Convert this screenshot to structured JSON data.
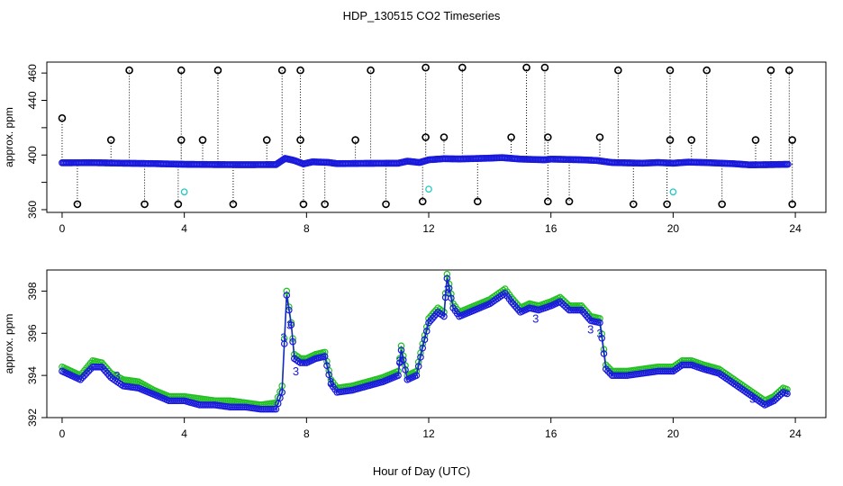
{
  "title": "HDP_130515  CO2 Timeseries",
  "xlabel": "Hour of Day (UTC)",
  "colors": {
    "black": "#000000",
    "blue": "#1a1adc",
    "green": "#22c022",
    "cyan": "#20c8c8"
  },
  "chart_data": [
    {
      "type": "scatter",
      "ylabel": "approx. ppm",
      "xlim": [
        -0.5,
        25
      ],
      "ylim": [
        358,
        468
      ],
      "xticks": [
        0,
        4,
        8,
        12,
        16,
        20,
        24
      ],
      "yticks": [
        360,
        380,
        400,
        420,
        440,
        460
      ],
      "ytick_labels": [
        "360",
        "",
        "400",
        "440",
        "460"
      ],
      "ytick_label_values": [
        360,
        380,
        400,
        440,
        460
      ],
      "baseline": [
        [
          0,
          394.3
        ],
        [
          1,
          394.4
        ],
        [
          2,
          394.0
        ],
        [
          3,
          393.7
        ],
        [
          4,
          393.2
        ],
        [
          5,
          393.0
        ],
        [
          6,
          392.9
        ],
        [
          7,
          393.0
        ],
        [
          7.3,
          397.5
        ],
        [
          7.6,
          396
        ],
        [
          7.9,
          393.5
        ],
        [
          8.2,
          395
        ],
        [
          8.7,
          394.6
        ],
        [
          9,
          393.7
        ],
        [
          10,
          393.9
        ],
        [
          11,
          394.0
        ],
        [
          11.3,
          395.5
        ],
        [
          11.7,
          394.5
        ],
        [
          12,
          396.5
        ],
        [
          12.5,
          397.3
        ],
        [
          13,
          397.1
        ],
        [
          14,
          397.7
        ],
        [
          14.4,
          398.1
        ],
        [
          15,
          397.0
        ],
        [
          15.8,
          396.5
        ],
        [
          16,
          397.0
        ],
        [
          17,
          396.5
        ],
        [
          17.5,
          396.0
        ],
        [
          18,
          394.5
        ],
        [
          19,
          394.0
        ],
        [
          19.5,
          394.5
        ],
        [
          20,
          394.0
        ],
        [
          20.5,
          394.8
        ],
        [
          21,
          394.5
        ],
        [
          22,
          393.6
        ],
        [
          22.5,
          392.8
        ],
        [
          23,
          392.9
        ],
        [
          23.8,
          393.2
        ]
      ],
      "spikes": [
        {
          "x": 0.0,
          "y": 427
        },
        {
          "x": 0.5,
          "y": 364
        },
        {
          "x": 1.6,
          "y": 411
        },
        {
          "x": 2.2,
          "y": 462
        },
        {
          "x": 2.7,
          "y": 364
        },
        {
          "x": 3.8,
          "y": 364
        },
        {
          "x": 3.9,
          "y": 411
        },
        {
          "x": 3.9,
          "y": 462
        },
        {
          "x": 4.6,
          "y": 411
        },
        {
          "x": 5.1,
          "y": 462
        },
        {
          "x": 5.6,
          "y": 364
        },
        {
          "x": 6.7,
          "y": 411
        },
        {
          "x": 7.2,
          "y": 462
        },
        {
          "x": 7.8,
          "y": 462
        },
        {
          "x": 7.8,
          "y": 411
        },
        {
          "x": 7.9,
          "y": 364
        },
        {
          "x": 8.6,
          "y": 364
        },
        {
          "x": 9.6,
          "y": 411
        },
        {
          "x": 10.1,
          "y": 462
        },
        {
          "x": 10.6,
          "y": 364
        },
        {
          "x": 11.8,
          "y": 366
        },
        {
          "x": 11.9,
          "y": 413
        },
        {
          "x": 11.9,
          "y": 464
        },
        {
          "x": 12.5,
          "y": 413
        },
        {
          "x": 13.1,
          "y": 464
        },
        {
          "x": 13.6,
          "y": 366
        },
        {
          "x": 14.7,
          "y": 413
        },
        {
          "x": 15.2,
          "y": 464
        },
        {
          "x": 15.8,
          "y": 464
        },
        {
          "x": 15.9,
          "y": 413
        },
        {
          "x": 15.9,
          "y": 366
        },
        {
          "x": 16.6,
          "y": 366
        },
        {
          "x": 17.6,
          "y": 413
        },
        {
          "x": 18.2,
          "y": 462
        },
        {
          "x": 18.7,
          "y": 364
        },
        {
          "x": 19.8,
          "y": 364
        },
        {
          "x": 19.9,
          "y": 411
        },
        {
          "x": 19.9,
          "y": 462
        },
        {
          "x": 20.6,
          "y": 411
        },
        {
          "x": 21.1,
          "y": 462
        },
        {
          "x": 21.6,
          "y": 364
        },
        {
          "x": 22.7,
          "y": 411
        },
        {
          "x": 23.2,
          "y": 462
        },
        {
          "x": 23.8,
          "y": 462
        },
        {
          "x": 23.9,
          "y": 411
        },
        {
          "x": 23.9,
          "y": 364
        }
      ],
      "cyan_points": [
        {
          "x": 4.0,
          "y": 373
        },
        {
          "x": 12.0,
          "y": 375
        },
        {
          "x": 20.0,
          "y": 373
        }
      ]
    },
    {
      "type": "line",
      "ylabel": "approx. ppm",
      "xlim": [
        -0.5,
        25
      ],
      "ylim": [
        392,
        399
      ],
      "xticks": [
        0,
        4,
        8,
        12,
        16,
        20,
        24
      ],
      "yticks": [
        392,
        394,
        396,
        398
      ],
      "series": [
        {
          "name": "green",
          "color": "#22c022",
          "points": [
            [
              0,
              394.4
            ],
            [
              0.3,
              394.2
            ],
            [
              0.6,
              394.0
            ],
            [
              1,
              394.7
            ],
            [
              1.3,
              394.6
            ],
            [
              1.6,
              394.1
            ],
            [
              2,
              393.8
            ],
            [
              2.5,
              393.7
            ],
            [
              3,
              393.3
            ],
            [
              3.5,
              393.0
            ],
            [
              4,
              393.0
            ],
            [
              4.5,
              392.9
            ],
            [
              5,
              392.8
            ],
            [
              5.5,
              392.8
            ],
            [
              6,
              392.7
            ],
            [
              6.5,
              392.6
            ],
            [
              7,
              392.7
            ],
            [
              7.2,
              393.5
            ],
            [
              7.35,
              398.0
            ],
            [
              7.5,
              396.5
            ],
            [
              7.6,
              395.0
            ],
            [
              7.8,
              394.8
            ],
            [
              8,
              394.8
            ],
            [
              8.3,
              395.0
            ],
            [
              8.6,
              395.1
            ],
            [
              8.8,
              393.8
            ],
            [
              9,
              393.4
            ],
            [
              9.5,
              393.5
            ],
            [
              10,
              393.7
            ],
            [
              10.5,
              393.9
            ],
            [
              11,
              394.2
            ],
            [
              11.1,
              395.4
            ],
            [
              11.3,
              394.0
            ],
            [
              11.6,
              394.2
            ],
            [
              11.8,
              395.5
            ],
            [
              12,
              396.7
            ],
            [
              12.3,
              397.2
            ],
            [
              12.5,
              397.0
            ],
            [
              12.6,
              398.8
            ],
            [
              12.8,
              397.4
            ],
            [
              13,
              397.0
            ],
            [
              13.5,
              397.3
            ],
            [
              14,
              397.6
            ],
            [
              14.5,
              398.1
            ],
            [
              14.7,
              397.7
            ],
            [
              15,
              397.2
            ],
            [
              15.3,
              397.4
            ],
            [
              15.6,
              397.3
            ],
            [
              16,
              397.5
            ],
            [
              16.3,
              397.7
            ],
            [
              16.6,
              397.3
            ],
            [
              17,
              397.3
            ],
            [
              17.3,
              396.8
            ],
            [
              17.6,
              396.7
            ],
            [
              17.8,
              394.5
            ],
            [
              18,
              394.2
            ],
            [
              18.5,
              394.2
            ],
            [
              19,
              394.3
            ],
            [
              19.5,
              394.4
            ],
            [
              20,
              394.4
            ],
            [
              20.3,
              394.7
            ],
            [
              20.6,
              394.7
            ],
            [
              21,
              394.5
            ],
            [
              21.5,
              394.3
            ],
            [
              22,
              393.8
            ],
            [
              22.5,
              393.3
            ],
            [
              23,
              392.8
            ],
            [
              23.3,
              393.0
            ],
            [
              23.6,
              393.4
            ],
            [
              23.8,
              393.3
            ]
          ]
        },
        {
          "name": "blue",
          "color": "#1a1adc",
          "points": [
            [
              0,
              394.2
            ],
            [
              0.3,
              394.0
            ],
            [
              0.6,
              393.8
            ],
            [
              1,
              394.4
            ],
            [
              1.3,
              394.4
            ],
            [
              1.6,
              393.9
            ],
            [
              2,
              393.5
            ],
            [
              2.5,
              393.4
            ],
            [
              3,
              393.1
            ],
            [
              3.5,
              392.8
            ],
            [
              4,
              392.8
            ],
            [
              4.5,
              392.6
            ],
            [
              5,
              392.6
            ],
            [
              5.5,
              392.5
            ],
            [
              6,
              392.5
            ],
            [
              6.5,
              392.4
            ],
            [
              7,
              392.4
            ],
            [
              7.2,
              393.2
            ],
            [
              7.35,
              397.8
            ],
            [
              7.5,
              396.4
            ],
            [
              7.6,
              394.8
            ],
            [
              7.8,
              394.6
            ],
            [
              8,
              394.6
            ],
            [
              8.3,
              394.8
            ],
            [
              8.6,
              394.9
            ],
            [
              8.8,
              393.6
            ],
            [
              9,
              393.2
            ],
            [
              9.5,
              393.3
            ],
            [
              10,
              393.5
            ],
            [
              10.5,
              393.7
            ],
            [
              11,
              394.0
            ],
            [
              11.1,
              395.2
            ],
            [
              11.3,
              393.8
            ],
            [
              11.6,
              394.0
            ],
            [
              11.8,
              395.3
            ],
            [
              12,
              396.5
            ],
            [
              12.3,
              397.0
            ],
            [
              12.5,
              396.8
            ],
            [
              12.6,
              398.6
            ],
            [
              12.8,
              397.2
            ],
            [
              13,
              396.8
            ],
            [
              13.5,
              397.1
            ],
            [
              14,
              397.4
            ],
            [
              14.5,
              397.9
            ],
            [
              14.7,
              397.5
            ],
            [
              15,
              397.0
            ],
            [
              15.3,
              397.2
            ],
            [
              15.6,
              397.1
            ],
            [
              16,
              397.3
            ],
            [
              16.3,
              397.5
            ],
            [
              16.6,
              397.1
            ],
            [
              17,
              397.1
            ],
            [
              17.3,
              396.6
            ],
            [
              17.6,
              396.5
            ],
            [
              17.8,
              394.3
            ],
            [
              18,
              394.0
            ],
            [
              18.5,
              394.0
            ],
            [
              19,
              394.1
            ],
            [
              19.5,
              394.2
            ],
            [
              20,
              394.2
            ],
            [
              20.3,
              394.5
            ],
            [
              20.6,
              394.5
            ],
            [
              21,
              394.3
            ],
            [
              21.5,
              394.1
            ],
            [
              22,
              393.6
            ],
            [
              22.5,
              393.1
            ],
            [
              23,
              392.6
            ],
            [
              23.3,
              392.8
            ],
            [
              23.6,
              393.2
            ],
            [
              23.8,
              393.1
            ]
          ]
        }
      ],
      "digit_labels": [
        {
          "text": "3",
          "x": 7.25,
          "y": 395.6
        },
        {
          "text": "3",
          "x": 7.45,
          "y": 396.2
        },
        {
          "text": "3",
          "x": 7.65,
          "y": 394.0
        },
        {
          "text": "3",
          "x": 8.8,
          "y": 393.5
        },
        {
          "text": "3",
          "x": 11.05,
          "y": 394.5
        },
        {
          "text": "3",
          "x": 12.6,
          "y": 397.9
        },
        {
          "text": "3",
          "x": 15.5,
          "y": 396.5
        },
        {
          "text": "3",
          "x": 17.3,
          "y": 396.0
        },
        {
          "text": "3",
          "x": 17.6,
          "y": 395.8
        },
        {
          "text": "3",
          "x": 1.8,
          "y": 393.8
        },
        {
          "text": "3",
          "x": 22.6,
          "y": 392.7
        }
      ]
    }
  ]
}
